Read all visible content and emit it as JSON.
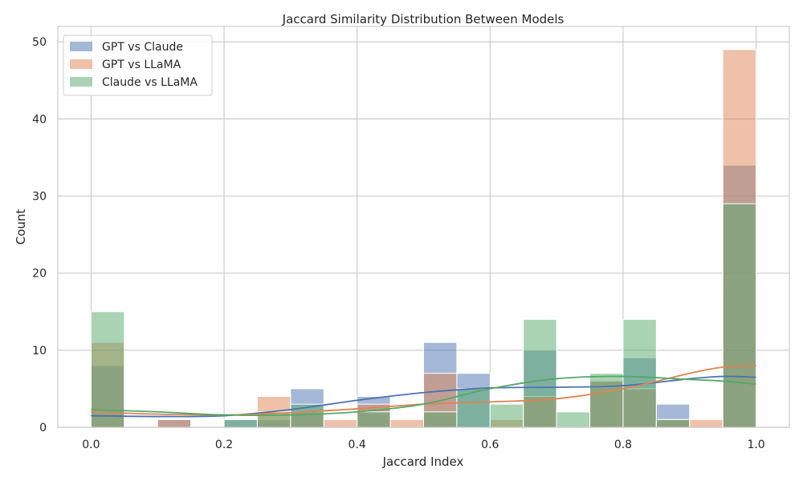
{
  "chart_data": {
    "type": "bar",
    "title": "Jaccard Similarity Distribution Between Models",
    "xlabel": "Jaccard Index",
    "ylabel": "Count",
    "xlim": [
      -0.05,
      1.05
    ],
    "ylim": [
      0,
      52
    ],
    "x_ticks": [
      0.0,
      0.2,
      0.4,
      0.6,
      0.8,
      1.0
    ],
    "x_tick_labels": [
      "0.0",
      "0.2",
      "0.4",
      "0.6",
      "0.8",
      "1.0"
    ],
    "y_ticks": [
      0,
      10,
      20,
      30,
      40,
      50
    ],
    "y_tick_labels": [
      "0",
      "10",
      "20",
      "30",
      "40",
      "50"
    ],
    "grid": true,
    "legend_position": "top-left",
    "bin_edges": [
      0.0,
      0.05,
      0.1,
      0.15,
      0.2,
      0.25,
      0.3,
      0.35,
      0.4,
      0.45,
      0.5,
      0.55,
      0.6,
      0.65,
      0.7,
      0.75,
      0.8,
      0.85,
      0.9,
      0.95,
      1.0
    ],
    "series": [
      {
        "name": "GPT vs Claude",
        "color": "#4c72b0",
        "values": [
          8,
          0,
          1,
          0,
          1,
          1,
          5,
          0,
          4,
          0,
          11,
          7,
          0,
          10,
          0,
          6,
          9,
          3,
          0,
          34
        ],
        "kde_x": [
          0.0,
          0.1,
          0.2,
          0.3,
          0.4,
          0.5,
          0.6,
          0.7,
          0.8,
          0.9,
          0.95,
          1.0
        ],
        "kde_y": [
          1.5,
          1.4,
          1.5,
          2.3,
          3.5,
          4.5,
          5.1,
          5.2,
          5.4,
          6.3,
          6.6,
          6.5
        ]
      },
      {
        "name": "GPT vs LLaMA",
        "color": "#dd8452",
        "values": [
          11,
          0,
          1,
          0,
          0,
          4,
          2,
          1,
          3,
          1,
          7,
          0,
          1,
          4,
          0,
          6,
          5,
          1,
          1,
          49
        ],
        "kde_x": [
          0.0,
          0.1,
          0.2,
          0.3,
          0.4,
          0.5,
          0.6,
          0.7,
          0.8,
          0.9,
          0.95,
          1.0
        ],
        "kde_y": [
          2.0,
          1.7,
          1.6,
          1.9,
          2.4,
          3.0,
          3.3,
          3.7,
          5.0,
          7.0,
          7.8,
          8.0
        ]
      },
      {
        "name": "Claude vs LLaMA",
        "color": "#55a868",
        "values": [
          15,
          0,
          0,
          0,
          1,
          2,
          3,
          0,
          2,
          0,
          2,
          5,
          3,
          14,
          2,
          7,
          14,
          1,
          0,
          29
        ],
        "kde_x": [
          0.0,
          0.1,
          0.2,
          0.3,
          0.4,
          0.5,
          0.6,
          0.7,
          0.8,
          0.9,
          0.95,
          1.0
        ],
        "kde_y": [
          2.3,
          2.0,
          1.6,
          1.6,
          2.0,
          3.0,
          5.0,
          6.3,
          6.6,
          6.2,
          6.0,
          5.6
        ]
      }
    ]
  }
}
